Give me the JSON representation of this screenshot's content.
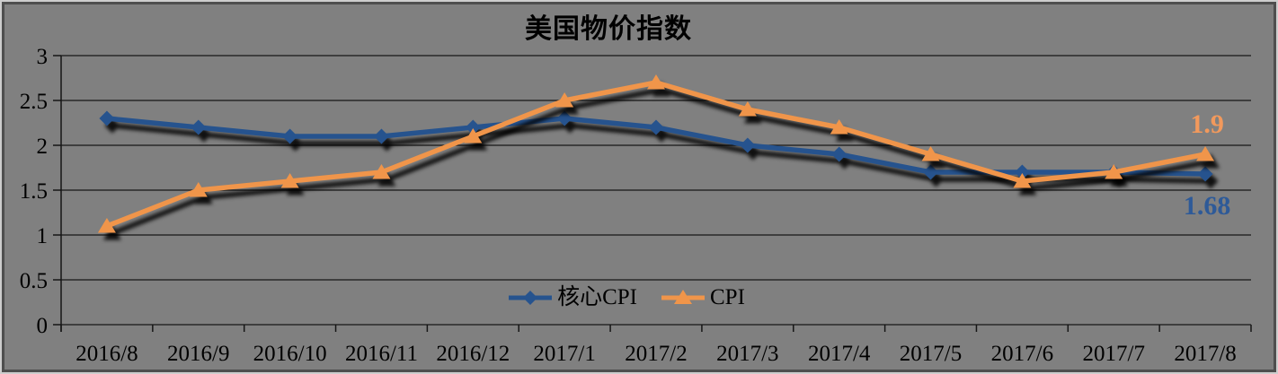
{
  "chart_data": {
    "type": "line",
    "title": "美国物价指数",
    "categories": [
      "2016/8",
      "2016/9",
      "2016/10",
      "2016/11",
      "2016/12",
      "2017/1",
      "2017/2",
      "2017/3",
      "2017/4",
      "2017/5",
      "2017/6",
      "2017/7",
      "2017/8"
    ],
    "series": [
      {
        "name": "核心CPI",
        "marker": "diamond",
        "color": "#26538E",
        "label_color": "#2E5A98",
        "end_label": "1.68",
        "end_label_position": "below",
        "values": [
          2.3,
          2.2,
          2.1,
          2.1,
          2.2,
          2.3,
          2.2,
          2.0,
          1.9,
          1.7,
          1.7,
          1.7,
          1.68
        ]
      },
      {
        "name": "CPI",
        "marker": "triangle",
        "color": "#F0954A",
        "label_color": "#F2995C",
        "end_label": "1.9",
        "end_label_position": "above",
        "values": [
          1.1,
          1.5,
          1.6,
          1.7,
          2.1,
          2.5,
          2.7,
          2.4,
          2.2,
          1.9,
          1.6,
          1.7,
          1.9
        ]
      }
    ],
    "ylim": [
      0,
      3
    ],
    "y_tick_step": 0.5,
    "y_tick_labels": [
      "0",
      "0.5",
      "1",
      "1.5",
      "2",
      "2.5",
      "3"
    ],
    "grid": true,
    "legend_position": "bottom-center",
    "background": "#808080",
    "gridline_color": "#161616"
  }
}
